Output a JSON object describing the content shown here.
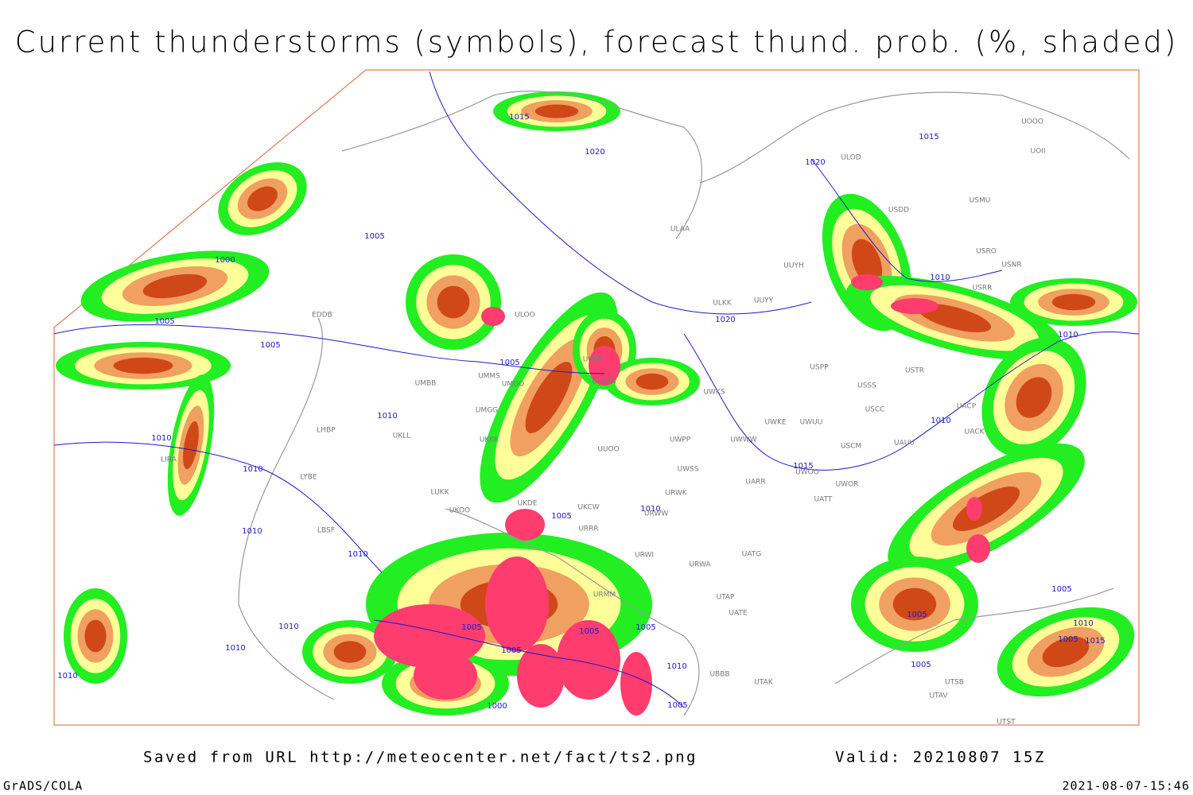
{
  "title": "Current thunderstorms (symbols), forecast thund. prob. (%, shaded)",
  "footer": {
    "saved": "Saved from URL http://meteocenter.net/fact/ts2.png",
    "valid": "Valid: 20210807 15Z",
    "software": "GrADS/COLA",
    "timestamp": "2021-08-07-15:46"
  },
  "isobars": [
    "1015",
    "1020",
    "1020",
    "1015",
    "1005",
    "1000",
    "1005",
    "1005",
    "1020",
    "1010",
    "1010",
    "1005",
    "1010",
    "1010",
    "1010",
    "1010",
    "1015",
    "1005",
    "1010",
    "1010",
    "1010",
    "1010",
    "1010",
    "1010",
    "1005",
    "1005",
    "1005",
    "1005",
    "1010",
    "1005",
    "1000",
    "1005",
    "1005",
    "1010",
    "1005",
    "1015",
    "1005"
  ],
  "stations": [
    "ULOD",
    "USDD",
    "USMU",
    "USRO",
    "USNR",
    "USRR",
    "ULKK",
    "UUYY",
    "UUYH",
    "UOOO",
    "UOII",
    "ULAA",
    "ULOO",
    "UMMS",
    "UMBB",
    "UMOO",
    "UMGG",
    "UKLL",
    "UKKK",
    "LUKK",
    "UKOO",
    "UKDE",
    "UKCW",
    "URRR",
    "URWI",
    "URMM",
    "UUEE",
    "UUWW",
    "UUOO",
    "UWPP",
    "UWSS",
    "URWK",
    "URWW",
    "UWKS",
    "UWKE",
    "UWUU",
    "UWWW",
    "UARR",
    "UWOO",
    "UWOR",
    "UATT",
    "UATG",
    "USSS",
    "USCC",
    "USCM",
    "UAUU",
    "USPP",
    "USTR",
    "UACP",
    "UACK",
    "UATE",
    "UTAP",
    "UTAK",
    "UBBB",
    "UTSB",
    "UTAV",
    "UTST",
    "URWA",
    "LBSF",
    "LYBE",
    "LHBP",
    "LIRA",
    "EDDB"
  ]
}
